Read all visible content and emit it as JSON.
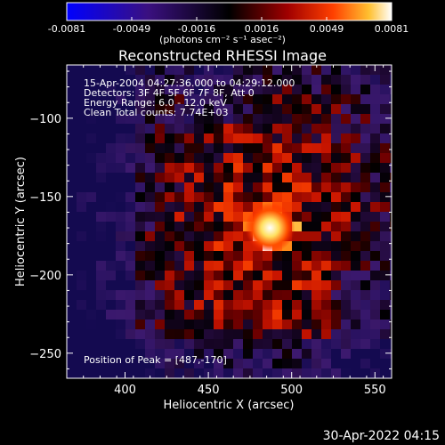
{
  "colorbar": {
    "ticks": [
      "-0.0081",
      "-0.0049",
      "-0.0016",
      "0.0016",
      "0.0049",
      "0.0081"
    ],
    "units_line": "(photons cm⁻² s⁻¹ asec⁻²)"
  },
  "chart_data": {
    "type": "heatmap",
    "title": "Reconstructed RHESSI Image",
    "xlabel": "Heliocentric X (arcsec)",
    "ylabel": "Heliocentric Y (arcsec)",
    "xlim": [
      365,
      560
    ],
    "ylim": [
      -266,
      -66
    ],
    "x_ticks": [
      400,
      450,
      500,
      550
    ],
    "y_ticks": [
      -100,
      -150,
      -200,
      -250
    ],
    "colorbar_range": [
      -0.0081,
      0.0081
    ],
    "peak": {
      "x": 487,
      "y": -170
    },
    "annotations": [
      "15-Apr-2004 04:27:36.000 to 04:29:12.000",
      "Detectors: 3F 4F 5F 6F 7F 8F, Att 0",
      "Energy Range: 6.0 - 12.0 keV",
      "Clean     Total counts: 7.74E+03"
    ],
    "peak_label": "Position of Peak = [487,-170]",
    "colormap_colors": [
      "#0000ff",
      "#2a0a5a",
      "#000000",
      "#5a0000",
      "#ff3000",
      "#ffc020",
      "#ffffff"
    ]
  },
  "footer": {
    "timestamp": "30-Apr-2022 04:15"
  }
}
